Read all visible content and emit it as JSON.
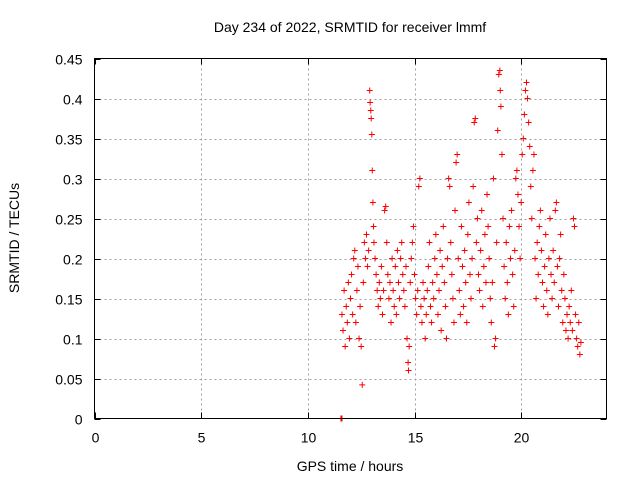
{
  "chart_data": {
    "type": "scatter",
    "title": "Day 234 of 2022, SRMTID for receiver lmmf",
    "xlabel": "GPS time / hours",
    "ylabel": "SRMTID / TECUs",
    "xlim": [
      0,
      24
    ],
    "ylim": [
      0,
      0.45
    ],
    "xticks": [
      0,
      5,
      10,
      15,
      20
    ],
    "xtick_labels": [
      "0",
      "5",
      "10",
      "15",
      "20"
    ],
    "yticks": [
      0,
      0.05,
      0.1,
      0.15,
      0.2,
      0.25,
      0.3,
      0.35,
      0.4,
      0.45
    ],
    "ytick_labels": [
      "0",
      "0.05",
      "0.1",
      "0.15",
      "0.2",
      "0.25",
      "0.3",
      "0.35",
      "0.4",
      "0.45"
    ],
    "grid": true,
    "marker": "+",
    "color": "#ff0000",
    "series": [
      {
        "name": "SRMTID",
        "points": [
          [
            11.55,
            0.0
          ],
          [
            11.58,
            0.0
          ],
          [
            11.6,
            0.0
          ],
          [
            11.6,
            0.13
          ],
          [
            11.65,
            0.11
          ],
          [
            11.7,
            0.16
          ],
          [
            11.75,
            0.09
          ],
          [
            11.8,
            0.14
          ],
          [
            11.85,
            0.12
          ],
          [
            11.9,
            0.17
          ],
          [
            11.95,
            0.1
          ],
          [
            12.0,
            0.15
          ],
          [
            12.05,
            0.18
          ],
          [
            12.1,
            0.13
          ],
          [
            12.15,
            0.2
          ],
          [
            12.2,
            0.21
          ],
          [
            12.25,
            0.12
          ],
          [
            12.3,
            0.16
          ],
          [
            12.35,
            0.19
          ],
          [
            12.4,
            0.1
          ],
          [
            12.45,
            0.14
          ],
          [
            12.5,
            0.09
          ],
          [
            12.55,
            0.042
          ],
          [
            12.6,
            0.17
          ],
          [
            12.65,
            0.22
          ],
          [
            12.7,
            0.2
          ],
          [
            12.75,
            0.23
          ],
          [
            12.8,
            0.19
          ],
          [
            12.85,
            0.21
          ],
          [
            12.9,
            0.41
          ],
          [
            12.92,
            0.395
          ],
          [
            12.95,
            0.385
          ],
          [
            12.97,
            0.375
          ],
          [
            13.0,
            0.355
          ],
          [
            13.02,
            0.31
          ],
          [
            13.05,
            0.27
          ],
          [
            13.08,
            0.24
          ],
          [
            13.1,
            0.22
          ],
          [
            13.15,
            0.2
          ],
          [
            13.2,
            0.18
          ],
          [
            13.25,
            0.16
          ],
          [
            13.3,
            0.14
          ],
          [
            13.35,
            0.17
          ],
          [
            13.4,
            0.15
          ],
          [
            13.45,
            0.19
          ],
          [
            13.5,
            0.13
          ],
          [
            13.55,
            0.16
          ],
          [
            13.6,
            0.26
          ],
          [
            13.65,
            0.265
          ],
          [
            13.7,
            0.22
          ],
          [
            13.75,
            0.18
          ],
          [
            13.8,
            0.15
          ],
          [
            13.85,
            0.17
          ],
          [
            13.9,
            0.12
          ],
          [
            13.95,
            0.2
          ],
          [
            14.0,
            0.16
          ],
          [
            14.05,
            0.14
          ],
          [
            14.1,
            0.19
          ],
          [
            14.15,
            0.13
          ],
          [
            14.2,
            0.21
          ],
          [
            14.25,
            0.17
          ],
          [
            14.3,
            0.15
          ],
          [
            14.35,
            0.2
          ],
          [
            14.4,
            0.22
          ],
          [
            14.45,
            0.18
          ],
          [
            14.5,
            0.16
          ],
          [
            14.55,
            0.14
          ],
          [
            14.6,
            0.19
          ],
          [
            14.65,
            0.1
          ],
          [
            14.7,
            0.07
          ],
          [
            14.72,
            0.06
          ],
          [
            14.75,
            0.09
          ],
          [
            14.8,
            0.17
          ],
          [
            14.85,
            0.2
          ],
          [
            14.9,
            0.22
          ],
          [
            14.95,
            0.24
          ],
          [
            15.0,
            0.18
          ],
          [
            15.05,
            0.15
          ],
          [
            15.1,
            0.13
          ],
          [
            15.15,
            0.16
          ],
          [
            15.2,
            0.29
          ],
          [
            15.25,
            0.3
          ],
          [
            15.3,
            0.14
          ],
          [
            15.35,
            0.12
          ],
          [
            15.4,
            0.17
          ],
          [
            15.45,
            0.15
          ],
          [
            15.5,
            0.1
          ],
          [
            15.55,
            0.13
          ],
          [
            15.6,
            0.16
          ],
          [
            15.65,
            0.19
          ],
          [
            15.7,
            0.22
          ],
          [
            15.75,
            0.14
          ],
          [
            15.8,
            0.12
          ],
          [
            15.85,
            0.17
          ],
          [
            15.9,
            0.15
          ],
          [
            15.95,
            0.2
          ],
          [
            16.0,
            0.23
          ],
          [
            16.05,
            0.18
          ],
          [
            16.1,
            0.13
          ],
          [
            16.15,
            0.16
          ],
          [
            16.2,
            0.21
          ],
          [
            16.25,
            0.11
          ],
          [
            16.3,
            0.19
          ],
          [
            16.35,
            0.24
          ],
          [
            16.4,
            0.17
          ],
          [
            16.45,
            0.14
          ],
          [
            16.5,
            0.1
          ],
          [
            16.55,
            0.2
          ],
          [
            16.6,
            0.3
          ],
          [
            16.65,
            0.29
          ],
          [
            16.7,
            0.22
          ],
          [
            16.75,
            0.18
          ],
          [
            16.8,
            0.15
          ],
          [
            16.85,
            0.12
          ],
          [
            16.9,
            0.26
          ],
          [
            16.95,
            0.32
          ],
          [
            17.0,
            0.33
          ],
          [
            17.05,
            0.2
          ],
          [
            17.1,
            0.16
          ],
          [
            17.15,
            0.13
          ],
          [
            17.2,
            0.24
          ],
          [
            17.25,
            0.19
          ],
          [
            17.3,
            0.14
          ],
          [
            17.35,
            0.21
          ],
          [
            17.4,
            0.17
          ],
          [
            17.45,
            0.12
          ],
          [
            17.5,
            0.23
          ],
          [
            17.55,
            0.27
          ],
          [
            17.6,
            0.18
          ],
          [
            17.65,
            0.15
          ],
          [
            17.7,
            0.2
          ],
          [
            17.75,
            0.29
          ],
          [
            17.8,
            0.37
          ],
          [
            17.85,
            0.375
          ],
          [
            17.9,
            0.22
          ],
          [
            17.95,
            0.25
          ],
          [
            18.0,
            0.18
          ],
          [
            18.05,
            0.16
          ],
          [
            18.1,
            0.21
          ],
          [
            18.15,
            0.26
          ],
          [
            18.2,
            0.14
          ],
          [
            18.25,
            0.19
          ],
          [
            18.3,
            0.23
          ],
          [
            18.35,
            0.17
          ],
          [
            18.4,
            0.28
          ],
          [
            18.45,
            0.24
          ],
          [
            18.5,
            0.2
          ],
          [
            18.55,
            0.15
          ],
          [
            18.6,
            0.12
          ],
          [
            18.65,
            0.17
          ],
          [
            18.7,
            0.3
          ],
          [
            18.75,
            0.09
          ],
          [
            18.8,
            0.1
          ],
          [
            18.85,
            0.22
          ],
          [
            18.9,
            0.36
          ],
          [
            18.95,
            0.43
          ],
          [
            19.0,
            0.435
          ],
          [
            19.02,
            0.41
          ],
          [
            19.05,
            0.39
          ],
          [
            19.1,
            0.33
          ],
          [
            19.15,
            0.25
          ],
          [
            19.2,
            0.19
          ],
          [
            19.25,
            0.15
          ],
          [
            19.3,
            0.22
          ],
          [
            19.35,
            0.17
          ],
          [
            19.4,
            0.13
          ],
          [
            19.45,
            0.24
          ],
          [
            19.5,
            0.2
          ],
          [
            19.55,
            0.26
          ],
          [
            19.6,
            0.18
          ],
          [
            19.65,
            0.14
          ],
          [
            19.7,
            0.21
          ],
          [
            19.75,
            0.3
          ],
          [
            19.8,
            0.31
          ],
          [
            19.85,
            0.28
          ],
          [
            19.9,
            0.24
          ],
          [
            19.95,
            0.2
          ],
          [
            20.0,
            0.27
          ],
          [
            20.05,
            0.33
          ],
          [
            20.1,
            0.35
          ],
          [
            20.15,
            0.38
          ],
          [
            20.2,
            0.41
          ],
          [
            20.25,
            0.42
          ],
          [
            20.3,
            0.4
          ],
          [
            20.35,
            0.37
          ],
          [
            20.4,
            0.34
          ],
          [
            20.45,
            0.29
          ],
          [
            20.5,
            0.25
          ],
          [
            20.55,
            0.31
          ],
          [
            20.6,
            0.33
          ],
          [
            20.65,
            0.2
          ],
          [
            20.7,
            0.15
          ],
          [
            20.75,
            0.22
          ],
          [
            20.8,
            0.18
          ],
          [
            20.85,
            0.24
          ],
          [
            20.9,
            0.26
          ],
          [
            20.95,
            0.21
          ],
          [
            21.0,
            0.17
          ],
          [
            21.05,
            0.14
          ],
          [
            21.1,
            0.19
          ],
          [
            21.15,
            0.23
          ],
          [
            21.2,
            0.16
          ],
          [
            21.25,
            0.13
          ],
          [
            21.3,
            0.2
          ],
          [
            21.35,
            0.25
          ],
          [
            21.4,
            0.18
          ],
          [
            21.45,
            0.15
          ],
          [
            21.5,
            0.21
          ],
          [
            21.55,
            0.17
          ],
          [
            21.6,
            0.26
          ],
          [
            21.65,
            0.27
          ],
          [
            21.7,
            0.19
          ],
          [
            21.75,
            0.14
          ],
          [
            21.8,
            0.2
          ],
          [
            21.85,
            0.23
          ],
          [
            21.9,
            0.16
          ],
          [
            21.95,
            0.12
          ],
          [
            22.0,
            0.18
          ],
          [
            22.05,
            0.15
          ],
          [
            22.1,
            0.11
          ],
          [
            22.15,
            0.13
          ],
          [
            22.2,
            0.1
          ],
          [
            22.25,
            0.14
          ],
          [
            22.3,
            0.12
          ],
          [
            22.35,
            0.16
          ],
          [
            22.4,
            0.11
          ],
          [
            22.45,
            0.25
          ],
          [
            22.5,
            0.24
          ],
          [
            22.55,
            0.13
          ],
          [
            22.6,
            0.1
          ],
          [
            22.65,
            0.09
          ],
          [
            22.7,
            0.12
          ],
          [
            22.75,
            0.08
          ],
          [
            22.8,
            0.095
          ]
        ]
      }
    ]
  }
}
